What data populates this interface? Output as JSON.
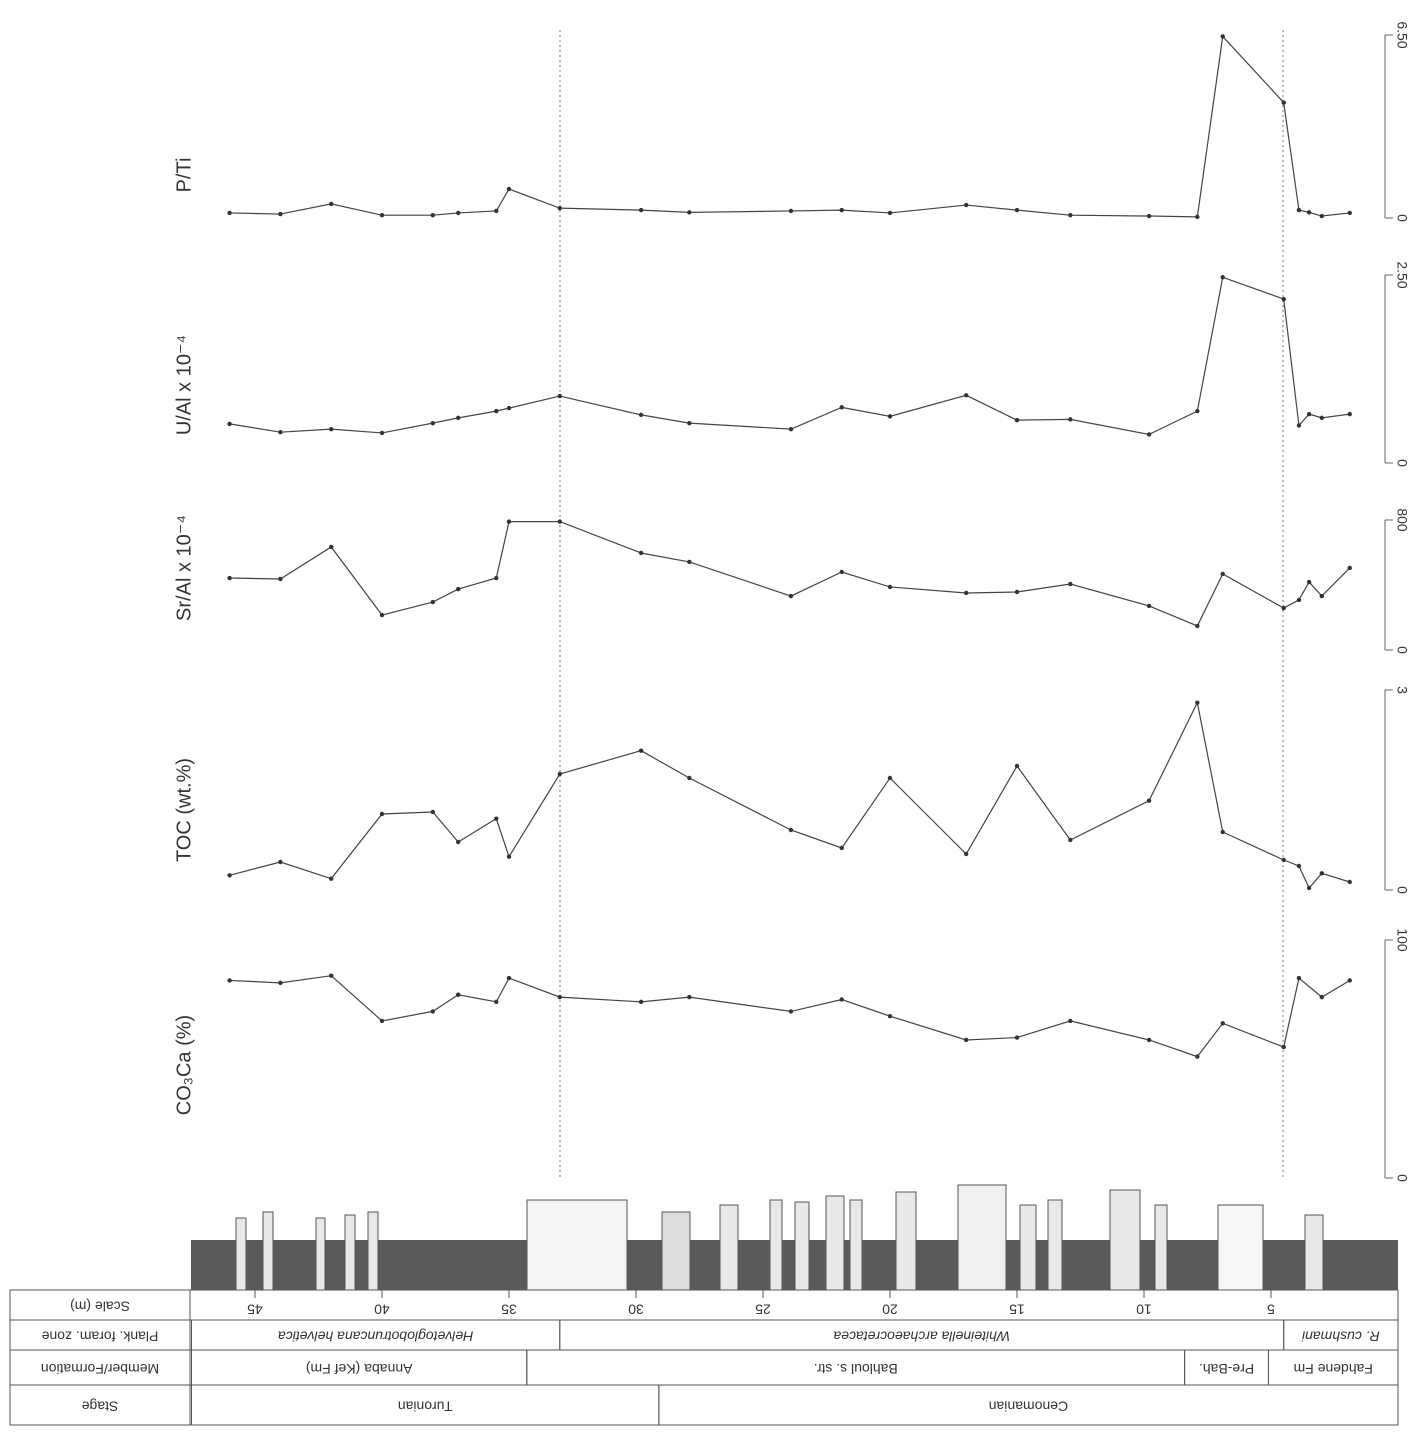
{
  "chart_data": [
    {
      "type": "line",
      "title": "P/Ti",
      "ylim": [
        0,
        6.5
      ],
      "yticks": [
        0,
        {
          "value": 6.5,
          "label": "6.50"
        }
      ],
      "x": [
        46.0,
        44.0,
        42.0,
        40.0,
        38.0,
        37.0,
        35.5,
        35.0,
        33.0,
        29.8,
        27.9,
        23.9,
        21.9,
        20.0,
        17.0,
        15.0,
        12.9,
        9.8,
        7.9,
        6.9,
        4.5,
        3.9,
        3.5,
        3.0,
        1.9
      ],
      "values": [
        0.18,
        0.14,
        0.5,
        0.1,
        0.1,
        0.18,
        0.25,
        1.03,
        0.35,
        0.28,
        0.2,
        0.25,
        0.28,
        0.18,
        0.46,
        0.28,
        0.1,
        0.07,
        0.04,
        6.45,
        4.1,
        0.28,
        0.2,
        0.07,
        0.18
      ]
    },
    {
      "type": "line",
      "title": "U/Al x 10⁻⁴",
      "ylim": [
        0,
        2.5
      ],
      "yticks": [
        0,
        {
          "value": 2.5,
          "label": "2.50"
        }
      ],
      "x": [
        46.0,
        44.0,
        42.0,
        40.0,
        38.0,
        37.0,
        35.5,
        35.0,
        33.0,
        29.8,
        27.9,
        23.9,
        21.9,
        20.0,
        17.0,
        15.0,
        12.9,
        9.8,
        7.9,
        6.9,
        4.5,
        3.9,
        3.5,
        3.0,
        1.9
      ],
      "values": [
        0.52,
        0.41,
        0.45,
        0.4,
        0.53,
        0.6,
        0.69,
        0.73,
        0.89,
        0.64,
        0.53,
        0.45,
        0.74,
        0.62,
        0.9,
        0.57,
        0.58,
        0.38,
        0.69,
        2.47,
        2.18,
        0.5,
        0.65,
        0.6,
        0.65
      ]
    },
    {
      "type": "line",
      "title": "Sr/Al x 10⁻⁴",
      "ylim": [
        0,
        800
      ],
      "yticks": [
        0,
        800
      ],
      "x": [
        46.0,
        44.0,
        42.0,
        40.0,
        38.0,
        37.0,
        35.5,
        35.0,
        33.0,
        29.8,
        27.9,
        23.9,
        21.9,
        20.0,
        17.0,
        15.0,
        12.9,
        9.8,
        7.9,
        6.9,
        4.5,
        3.9,
        3.5,
        3.0,
        1.9
      ],
      "values": [
        443,
        437,
        634,
        215,
        295,
        375,
        443,
        790,
        790,
        597,
        542,
        332,
        480,
        388,
        351,
        357,
        406,
        271,
        148,
        468,
        258,
        308,
        418,
        332,
        505
      ]
    },
    {
      "type": "line",
      "title": "TOC (wt.%)",
      "ylim": [
        0,
        3
      ],
      "yticks": [
        0,
        3
      ],
      "x": [
        46.0,
        44.0,
        42.0,
        40.0,
        38.0,
        37.0,
        35.5,
        35.0,
        33.0,
        29.8,
        27.9,
        23.9,
        21.9,
        20.0,
        17.0,
        15.0,
        12.9,
        9.8,
        7.9,
        6.9,
        4.5,
        3.9,
        3.5,
        3.0,
        1.9
      ],
      "values": [
        0.22,
        0.42,
        0.17,
        1.14,
        1.17,
        0.72,
        1.07,
        0.5,
        1.74,
        2.09,
        1.68,
        0.9,
        0.63,
        1.68,
        0.54,
        1.86,
        0.75,
        1.34,
        2.81,
        0.87,
        0.45,
        0.36,
        0.03,
        0.25,
        0.12
      ]
    },
    {
      "type": "line",
      "title": "CO₃Ca (%)",
      "ylim": [
        0,
        100
      ],
      "yticks": [
        0,
        100
      ],
      "x": [
        46.0,
        44.0,
        42.0,
        40.0,
        38.0,
        37.0,
        35.5,
        35.0,
        33.0,
        29.8,
        27.9,
        23.9,
        21.9,
        20.0,
        17.0,
        15.0,
        12.9,
        9.8,
        7.9,
        6.9,
        4.5,
        3.9,
        3.0,
        1.9
      ],
      "values": [
        83,
        82,
        85,
        66,
        70,
        77,
        74,
        84,
        76,
        74,
        76,
        70,
        75,
        68,
        58,
        59,
        66,
        58,
        51,
        65,
        55,
        84,
        76,
        83
      ]
    }
  ],
  "depth_axis": {
    "label": "Scale (m)",
    "xlim": [
      47.5,
      0
    ],
    "xticks": [
      45,
      40,
      35,
      30,
      25,
      20,
      15,
      10,
      5
    ]
  },
  "table": {
    "zone": {
      "label": "Plank. foram. zone",
      "cells": [
        {
          "text": "Helvetoglobotruncana helvetica",
          "from": 47.5,
          "to": 33.0
        },
        {
          "text": "Whiteinella archaeocretacea",
          "from": 33.0,
          "to": 4.5
        },
        {
          "text": "R. cushmani",
          "from": 4.5,
          "to": 0
        }
      ]
    },
    "member": {
      "label": "Member/Formation",
      "cells": [
        {
          "text": "Annaba (Kef Fm)",
          "from": 47.5,
          "to": 34.3
        },
        {
          "text": "Bahloul s. str.",
          "from": 34.3,
          "to": 8.4
        },
        {
          "text": "Pre-Bah.",
          "from": 8.4,
          "to": 5.1
        },
        {
          "text": "Fahdene Fm",
          "from": 5.1,
          "to": 0
        }
      ]
    },
    "stage": {
      "label": "Stage",
      "cells": [
        {
          "text": "Turonian",
          "from": 47.5,
          "to": 29.1
        },
        {
          "text": "Cenomanian",
          "from": 29.1,
          "to": 0
        }
      ]
    }
  }
}
